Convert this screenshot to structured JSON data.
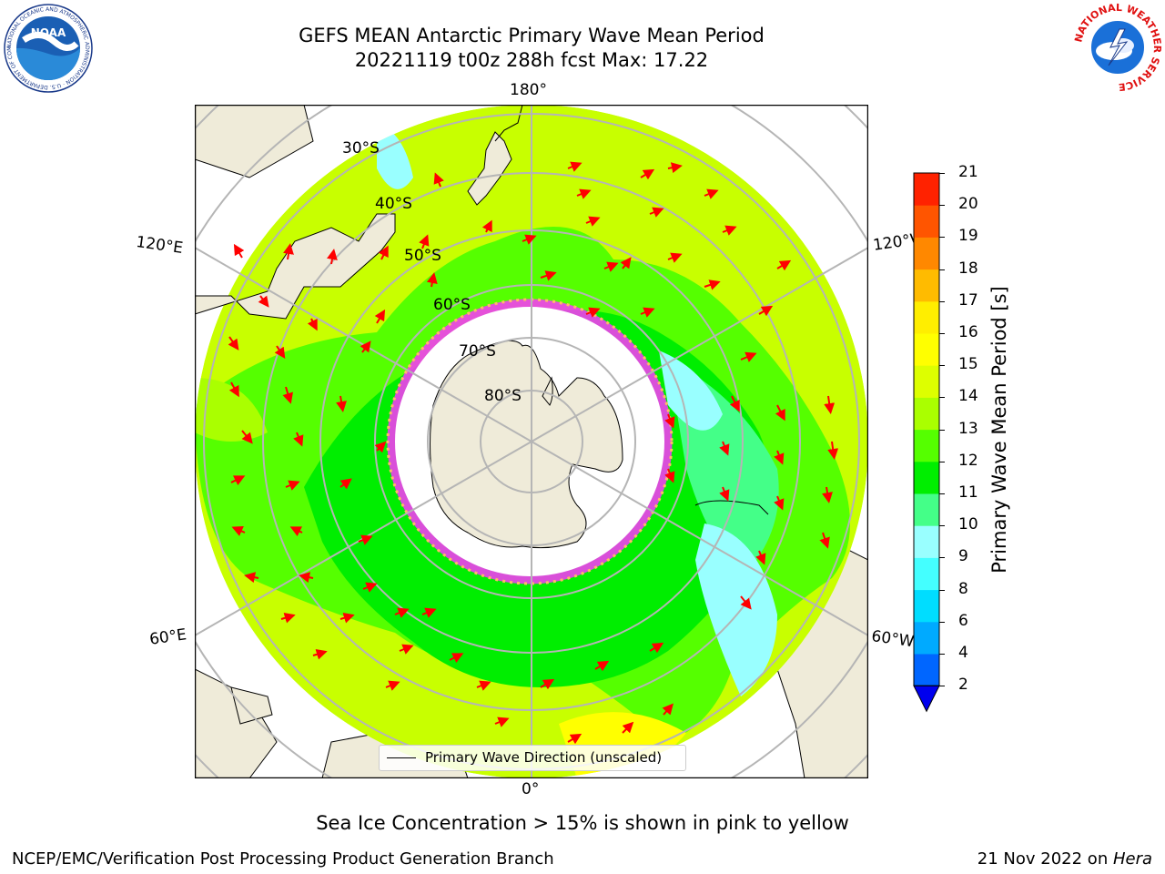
{
  "header": {
    "title_line1": "GEFS MEAN Antarctic Primary Wave Mean Period",
    "title_line2": "20221119 t00z 288h fcst   Max: 17.22"
  },
  "logos": {
    "left": "noara-logo",
    "left_text": "NOAA",
    "left_ring_text": "NATIONAL OCEANIC AND ATMOSPHERIC ADMINISTRATION · U.S. DEPARTMENT OF COMMERCE",
    "right": "nws-logo",
    "right_ring_text": "NATIONAL WEATHER SERVICE"
  },
  "map": {
    "projection": "south-polar-stereographic",
    "lon_labels": {
      "top": "180°",
      "bottom": "0°",
      "left_upper": "120°E",
      "left_lower": "60°E",
      "right_upper": "120°W",
      "right_lower": "60°W"
    },
    "lat_labels": [
      "30°S",
      "40°S",
      "50°S",
      "60°S",
      "70°S",
      "80°S"
    ],
    "legend": "Primary Wave Direction (unscaled)"
  },
  "colorbar": {
    "label": "Primary Wave Mean Period [s]",
    "ticks": [
      "2",
      "4",
      "6",
      "8",
      "9",
      "10",
      "11",
      "12",
      "13",
      "14",
      "15",
      "16",
      "17",
      "18",
      "19",
      "20",
      "21"
    ],
    "colors": [
      "#0066ff",
      "#00aaff",
      "#00ddff",
      "#44ffff",
      "#99ffff",
      "#44ff88",
      "#00ee00",
      "#55ff00",
      "#aaff00",
      "#ddff00",
      "#ffff00",
      "#ffee00",
      "#ffbb00",
      "#ff8800",
      "#ff5500",
      "#ff2200"
    ],
    "extend_color": "#0000ee"
  },
  "caption": "Sea Ice Concentration > 15% is shown in pink to yellow",
  "footer": {
    "left": "NCEP/EMC/Verification Post Processing Product Generation Branch",
    "right_prefix": "21 Nov 2022 on ",
    "right_host": "Hera"
  }
}
